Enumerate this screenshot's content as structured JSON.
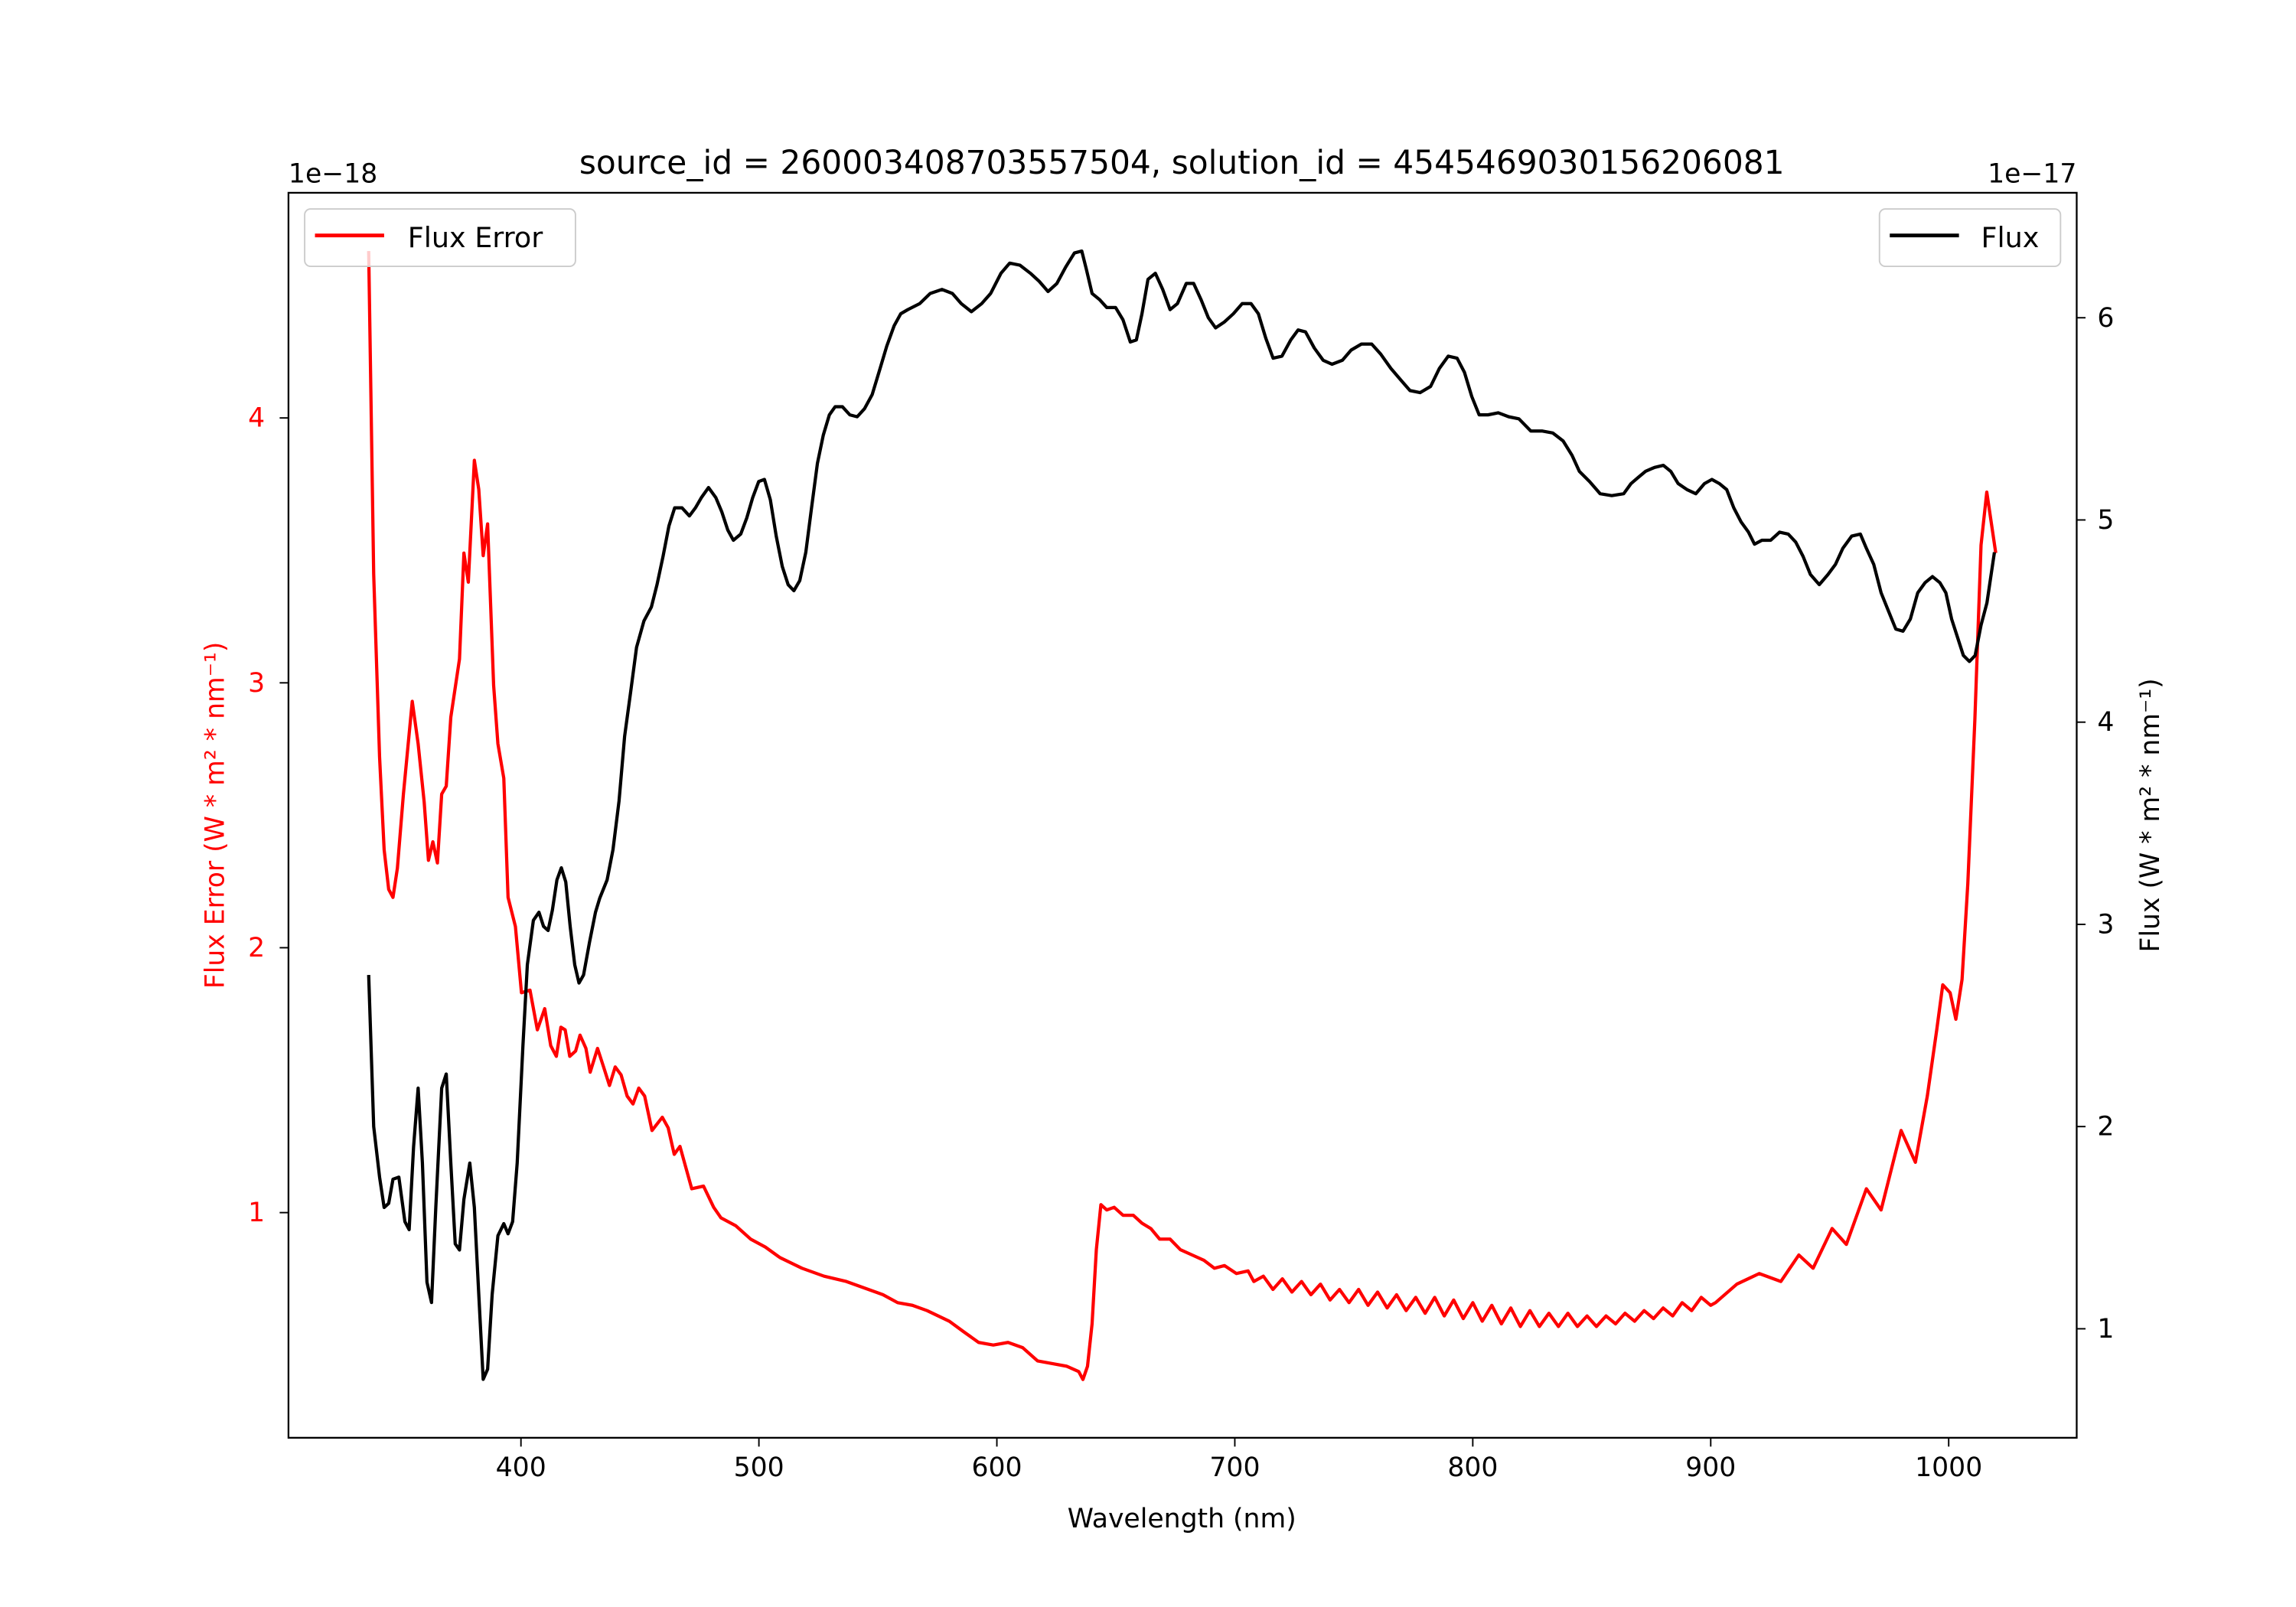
{
  "chart_data": {
    "type": "line",
    "title": "source_id = 2600034087035575​04, solution_id = 4545469030156206081",
    "xlabel": "Wavelength (nm)",
    "ylabel_left": "Flux Error (W * m² * nm⁻¹)",
    "ylabel_right": "Flux (W * m² * nm⁻¹)",
    "offset_left": "1e−18",
    "offset_right": "1e−17",
    "xlim": [
      302.3,
      1053.8
    ],
    "ylim_left": [
      0.15,
      4.85
    ],
    "ylim_right": [
      0.461,
      6.618
    ],
    "xticks": [
      400,
      500,
      600,
      700,
      800,
      900,
      1000
    ],
    "yticks_left": [
      1,
      2,
      3,
      4
    ],
    "yticks_right": [
      1,
      2,
      3,
      4,
      5,
      6
    ],
    "grid": false,
    "legends": [
      {
        "label": "Flux Error",
        "placement": "top-left",
        "color": "#ff0000"
      },
      {
        "label": "Flux",
        "placement": "top-right",
        "color": "#000000"
      }
    ],
    "series": [
      {
        "name": "Flux Error",
        "axis": "left",
        "color": "#ff0000",
        "x": [
          336,
          338.1,
          340.6,
          342.5,
          344.4,
          346.2,
          348.1,
          350.6,
          354.3,
          356.8,
          359.3,
          361.1,
          363,
          364.9,
          366.7,
          368.6,
          370.5,
          374.2,
          376,
          377.9,
          380.4,
          382.3,
          384.1,
          386,
          388.5,
          390.3,
          392.8,
          394.6,
          397.7,
          400.2,
          403.8,
          406.9,
          410,
          412.5,
          414.9,
          416.8,
          418.6,
          420.5,
          423,
          424.8,
          427.3,
          429.1,
          432.2,
          434.7,
          437.2,
          439.6,
          442.1,
          444.6,
          447.1,
          449.5,
          452,
          455.1,
          459.4,
          461.9,
          464.4,
          466.8,
          471.8,
          476.7,
          481,
          484.1,
          490.3,
          496.5,
          502.7,
          508.9,
          518.1,
          527.4,
          536.7,
          546,
          552.1,
          558.3,
          564.5,
          570.7,
          580,
          586.1,
          592.3,
          598.5,
          604.7,
          610.9,
          617.1,
          623.3,
          629.4,
          634.4,
          636.2,
          638.1,
          640,
          641.8,
          643.7,
          646.2,
          649.3,
          653,
          657.3,
          661,
          664.7,
          668.4,
          672.8,
          677.1,
          682.1,
          687,
          691.4,
          695.7,
          700.7,
          705.6,
          708,
          712,
          716,
          720,
          724,
          728,
          732,
          736,
          740,
          744,
          748,
          752,
          756,
          760,
          764,
          768,
          772,
          776,
          780,
          784,
          788,
          792,
          796,
          800,
          804,
          808,
          812,
          816,
          820,
          824,
          828,
          832,
          836,
          840,
          844,
          848,
          852,
          856,
          860,
          864,
          868,
          872,
          876,
          880,
          884,
          888,
          892,
          896,
          900,
          902,
          911,
          920.4,
          929.5,
          937,
          943,
          951,
          957,
          965.4,
          971.6,
          980,
          986,
          991,
          995,
          997.5,
          1000.6,
          1003,
          1005.6,
          1008,
          1011,
          1013.6,
          1016,
          1019.8
        ],
        "y": [
          4.63,
          3.41,
          2.72,
          2.37,
          2.22,
          2.19,
          2.3,
          2.58,
          2.93,
          2.77,
          2.55,
          2.33,
          2.4,
          2.32,
          2.58,
          2.61,
          2.87,
          3.09,
          3.49,
          3.38,
          3.84,
          3.73,
          3.48,
          3.6,
          2.99,
          2.77,
          2.64,
          2.19,
          2.08,
          1.83,
          1.84,
          1.69,
          1.77,
          1.63,
          1.59,
          1.7,
          1.69,
          1.59,
          1.61,
          1.67,
          1.62,
          1.53,
          1.62,
          1.55,
          1.48,
          1.55,
          1.52,
          1.44,
          1.41,
          1.47,
          1.44,
          1.31,
          1.36,
          1.32,
          1.22,
          1.25,
          1.09,
          1.1,
          1.02,
          0.98,
          0.95,
          0.9,
          0.87,
          0.83,
          0.79,
          0.76,
          0.74,
          0.71,
          0.69,
          0.66,
          0.65,
          0.63,
          0.59,
          0.55,
          0.51,
          0.5,
          0.51,
          0.49,
          0.44,
          0.43,
          0.42,
          0.4,
          0.37,
          0.42,
          0.58,
          0.86,
          1.03,
          1.01,
          1.02,
          0.99,
          0.99,
          0.96,
          0.94,
          0.9,
          0.9,
          0.86,
          0.84,
          0.82,
          0.79,
          0.8,
          0.77,
          0.78,
          0.74,
          0.76,
          0.71,
          0.75,
          0.7,
          0.74,
          0.69,
          0.73,
          0.67,
          0.71,
          0.66,
          0.71,
          0.65,
          0.7,
          0.64,
          0.69,
          0.63,
          0.68,
          0.62,
          0.68,
          0.61,
          0.67,
          0.6,
          0.66,
          0.59,
          0.65,
          0.58,
          0.64,
          0.57,
          0.63,
          0.57,
          0.62,
          0.57,
          0.62,
          0.57,
          0.61,
          0.57,
          0.61,
          0.58,
          0.62,
          0.59,
          0.63,
          0.6,
          0.64,
          0.61,
          0.66,
          0.63,
          0.68,
          0.65,
          0.66,
          0.73,
          0.77,
          0.74,
          0.84,
          0.79,
          0.94,
          0.88,
          1.09,
          1.01,
          1.31,
          1.19,
          1.44,
          1.69,
          1.86,
          1.83,
          1.73,
          1.88,
          2.24,
          2.86,
          3.52,
          3.72,
          3.49
        ]
      },
      {
        "name": "Flux",
        "axis": "right",
        "color": "#000000",
        "x": [
          336,
          338.1,
          340.6,
          342.5,
          344.4,
          346.2,
          348.7,
          351.2,
          353,
          354.9,
          356.8,
          358.6,
          360.5,
          362.4,
          364.2,
          366.7,
          368.6,
          370.5,
          372.4,
          374.2,
          376,
          378.5,
          380.4,
          382.3,
          384.1,
          386,
          387.9,
          390.3,
          392.8,
          394.6,
          396.5,
          398.4,
          400.8,
          402.7,
          405.2,
          407.6,
          409.5,
          411.4,
          413.2,
          415.1,
          417,
          418.8,
          420.7,
          422.6,
          424.4,
          426.3,
          428.8,
          431.3,
          433.1,
          436.2,
          438.7,
          441.2,
          443.6,
          446.1,
          448.6,
          451.7,
          454.8,
          457.2,
          459.7,
          462.2,
          464.6,
          467.7,
          470.8,
          473.3,
          475.8,
          478.8,
          481.9,
          484.4,
          486.9,
          489.3,
          492.4,
          494.9,
          497.4,
          499.9,
          502.3,
          504.8,
          507.3,
          509.8,
          512.3,
          514.7,
          517.2,
          519.7,
          522.1,
          524.6,
          527.1,
          529.6,
          532,
          535.1,
          538.2,
          541.3,
          544.4,
          547.6,
          550.7,
          553.7,
          556.8,
          559.6,
          562.6,
          567.6,
          572,
          576.9,
          581.3,
          585,
          589.3,
          593.6,
          597.4,
          601.7,
          605.4,
          609.7,
          614.1,
          617.8,
          621.5,
          625.2,
          628.9,
          632.6,
          635.7,
          637.6,
          640,
          643.1,
          646.2,
          649.9,
          653,
          656.1,
          658.6,
          661,
          663.5,
          666.6,
          669.7,
          672.8,
          675.9,
          679.6,
          682.7,
          685.8,
          688.9,
          691.9,
          695.7,
          699.4,
          703.1,
          706.8,
          709.9,
          713,
          716.1,
          719.8,
          723.5,
          726.6,
          729.7,
          733.4,
          737.1,
          740.8,
          745.2,
          748.9,
          753.2,
          757.5,
          761.3,
          765.6,
          769.9,
          773.6,
          777.9,
          782.3,
          786,
          789.7,
          793.4,
          796.5,
          799.6,
          802.7,
          806.4,
          810.7,
          815.1,
          819.4,
          824.4,
          829.3,
          833.6,
          838,
          841.7,
          844.8,
          849.1,
          853.5,
          858.4,
          863.4,
          866.5,
          869.5,
          872.6,
          876.4,
          880.1,
          883.2,
          886.3,
          890,
          893.7,
          897.4,
          900.5,
          903.6,
          906.7,
          909.7,
          912.8,
          915.9,
          918.4,
          921.5,
          925.2,
          928.9,
          932.6,
          935.7,
          938.8,
          941.9,
          945.6,
          949.3,
          952.4,
          955.5,
          959.2,
          962.9,
          965.4,
          968.5,
          971.6,
          974.7,
          977.8,
          980.8,
          983.9,
          987,
          990.1,
          993.2,
          996.3,
          998.8,
          1001.2,
          1003.7,
          1006.2,
          1008.7,
          1011.1,
          1013.6,
          1016.1,
          1019.2
        ],
        "y": [
          2.75,
          2.0,
          1.75,
          1.6,
          1.62,
          1.74,
          1.75,
          1.53,
          1.49,
          1.9,
          2.19,
          1.82,
          1.23,
          1.13,
          1.6,
          2.19,
          2.26,
          1.82,
          1.42,
          1.39,
          1.64,
          1.82,
          1.6,
          1.17,
          0.75,
          0.8,
          1.17,
          1.46,
          1.52,
          1.47,
          1.53,
          1.82,
          2.4,
          2.8,
          3.02,
          3.06,
          2.99,
          2.97,
          3.07,
          3.22,
          3.28,
          3.21,
          2.99,
          2.8,
          2.71,
          2.75,
          2.91,
          3.06,
          3.13,
          3.22,
          3.37,
          3.61,
          3.93,
          4.15,
          4.37,
          4.5,
          4.57,
          4.68,
          4.82,
          4.97,
          5.06,
          5.06,
          5.02,
          5.06,
          5.11,
          5.16,
          5.11,
          5.04,
          4.95,
          4.9,
          4.93,
          5.01,
          5.11,
          5.19,
          5.2,
          5.1,
          4.92,
          4.77,
          4.68,
          4.65,
          4.7,
          4.84,
          5.06,
          5.28,
          5.42,
          5.52,
          5.56,
          5.56,
          5.52,
          5.51,
          5.55,
          5.62,
          5.74,
          5.86,
          5.96,
          6.02,
          6.04,
          6.07,
          6.12,
          6.14,
          6.12,
          6.07,
          6.03,
          6.07,
          6.12,
          6.22,
          6.27,
          6.26,
          6.22,
          6.18,
          6.13,
          6.17,
          6.25,
          6.32,
          6.33,
          6.24,
          6.12,
          6.09,
          6.05,
          6.05,
          5.99,
          5.88,
          5.89,
          6.02,
          6.19,
          6.22,
          6.14,
          6.04,
          6.07,
          6.17,
          6.17,
          6.09,
          6.0,
          5.95,
          5.98,
          6.02,
          6.07,
          6.07,
          6.02,
          5.9,
          5.8,
          5.81,
          5.89,
          5.94,
          5.93,
          5.85,
          5.79,
          5.77,
          5.79,
          5.84,
          5.87,
          5.87,
          5.82,
          5.75,
          5.69,
          5.64,
          5.63,
          5.66,
          5.75,
          5.81,
          5.8,
          5.73,
          5.61,
          5.52,
          5.52,
          5.53,
          5.51,
          5.5,
          5.44,
          5.44,
          5.43,
          5.39,
          5.32,
          5.24,
          5.19,
          5.13,
          5.12,
          5.13,
          5.18,
          5.21,
          5.24,
          5.26,
          5.27,
          5.24,
          5.18,
          5.15,
          5.13,
          5.18,
          5.2,
          5.18,
          5.15,
          5.06,
          4.99,
          4.94,
          4.88,
          4.9,
          4.9,
          4.94,
          4.93,
          4.89,
          4.82,
          4.73,
          4.68,
          4.73,
          4.78,
          4.86,
          4.92,
          4.93,
          4.86,
          4.78,
          4.64,
          4.55,
          4.46,
          4.45,
          4.51,
          4.64,
          4.69,
          4.72,
          4.69,
          4.64,
          4.51,
          4.42,
          4.33,
          4.3,
          4.33,
          4.48,
          4.59,
          4.84
        ]
      }
    ]
  }
}
